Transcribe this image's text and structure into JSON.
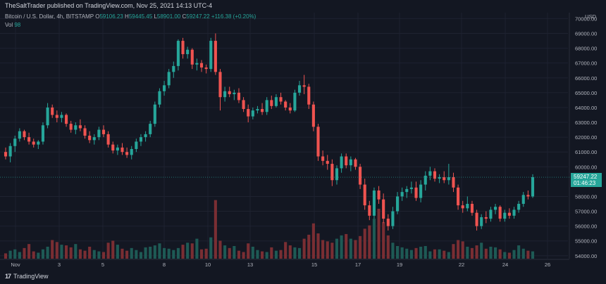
{
  "header": {
    "publisher": "TheSaltTrader published on TradingView.com, Nov 25, 2021 14:13 UTC-4"
  },
  "legend": {
    "symbol": "Bitcoin / U.S. Dollar, 4h, BITSTAMP",
    "open_label": "O",
    "open": "59106.23",
    "high_label": "H",
    "high": "59445.45",
    "low_label": "L",
    "low": "58901.00",
    "close_label": "C",
    "close": "59247.22",
    "change": "+116.38 (+0.20%)"
  },
  "volume": {
    "label": "Vol",
    "value": "98"
  },
  "price_box": {
    "price": "59247.22",
    "countdown": "01:46:23"
  },
  "footer": {
    "brand": "TradingView"
  },
  "colors": {
    "up": "#26a69a",
    "down": "#ef5350",
    "background": "#131722",
    "grid": "#1e2230"
  },
  "chart_data": {
    "type": "candlestick",
    "currency_label": "USD",
    "y_ticks": [
      "70000.00",
      "69000.00",
      "68000.00",
      "67000.00",
      "66000.00",
      "65000.00",
      "64000.00",
      "63000.00",
      "62000.00",
      "61000.00",
      "60000.00",
      "58000.00",
      "57000.00",
      "56000.00",
      "55000.00",
      "54000.00"
    ],
    "ylim": [
      53800,
      70400
    ],
    "x_ticks": [
      "Nov",
      "3",
      "5",
      "8",
      "10",
      "13",
      "15",
      "17",
      "19",
      "22",
      "24",
      "26"
    ],
    "grid": true,
    "candles": [
      [
        61000,
        61300,
        60500,
        60700
      ],
      [
        60700,
        61600,
        60300,
        61400
      ],
      [
        61400,
        62100,
        61000,
        61900
      ],
      [
        61900,
        62600,
        61700,
        62400
      ],
      [
        62400,
        62500,
        61800,
        62000
      ],
      [
        62000,
        62300,
        61500,
        61700
      ],
      [
        61700,
        61900,
        61300,
        61500
      ],
      [
        61500,
        61800,
        61200,
        61700
      ],
      [
        61700,
        63000,
        61500,
        62800
      ],
      [
        62800,
        64300,
        62600,
        64000
      ],
      [
        64000,
        64200,
        63300,
        63500
      ],
      [
        63500,
        63800,
        63000,
        63300
      ],
      [
        63300,
        63700,
        63000,
        63500
      ],
      [
        63500,
        63600,
        62700,
        62900
      ],
      [
        62900,
        63100,
        62300,
        62500
      ],
      [
        62500,
        63000,
        62200,
        62800
      ],
      [
        62800,
        63200,
        62400,
        62600
      ],
      [
        62600,
        62800,
        61900,
        62100
      ],
      [
        62100,
        62400,
        61600,
        61800
      ],
      [
        61800,
        62200,
        61500,
        62000
      ],
      [
        62000,
        62700,
        61800,
        62500
      ],
      [
        62500,
        62800,
        62000,
        62200
      ],
      [
        62200,
        62400,
        61300,
        61500
      ],
      [
        61500,
        61700,
        60900,
        61100
      ],
      [
        61100,
        61500,
        60800,
        61300
      ],
      [
        61300,
        61600,
        60800,
        61000
      ],
      [
        61000,
        61300,
        60600,
        60800
      ],
      [
        60800,
        61400,
        60500,
        61200
      ],
      [
        61200,
        61900,
        61000,
        61700
      ],
      [
        61700,
        62200,
        61400,
        62000
      ],
      [
        62000,
        62400,
        61700,
        62200
      ],
      [
        62200,
        63100,
        62000,
        62900
      ],
      [
        62900,
        64400,
        62700,
        64200
      ],
      [
        64200,
        65300,
        64000,
        65100
      ],
      [
        65100,
        65800,
        64800,
        65500
      ],
      [
        65500,
        66600,
        65300,
        66400
      ],
      [
        66400,
        67100,
        66000,
        66800
      ],
      [
        66800,
        68600,
        66500,
        68500
      ],
      [
        68500,
        68700,
        67300,
        67600
      ],
      [
        67600,
        68100,
        67300,
        67900
      ],
      [
        67900,
        68000,
        66600,
        66900
      ],
      [
        66900,
        67300,
        66500,
        67000
      ],
      [
        67000,
        67200,
        66400,
        66700
      ],
      [
        66700,
        66900,
        66300,
        66600
      ],
      [
        66600,
        68700,
        66400,
        68500
      ],
      [
        68500,
        69000,
        66200,
        66400
      ],
      [
        66400,
        66600,
        63800,
        64700
      ],
      [
        64700,
        65400,
        64400,
        65100
      ],
      [
        65100,
        65400,
        64700,
        64900
      ],
      [
        64900,
        65200,
        64500,
        65000
      ],
      [
        65000,
        65300,
        64300,
        64500
      ],
      [
        64500,
        64700,
        63700,
        63900
      ],
      [
        63900,
        64200,
        63000,
        63400
      ],
      [
        63400,
        64000,
        63200,
        63800
      ],
      [
        63800,
        64100,
        63600,
        63900
      ],
      [
        63900,
        64300,
        63500,
        63700
      ],
      [
        63700,
        64700,
        63500,
        64500
      ],
      [
        64500,
        64800,
        63900,
        64100
      ],
      [
        64100,
        64900,
        64000,
        64700
      ],
      [
        64700,
        65000,
        64200,
        64400
      ],
      [
        64400,
        64500,
        63800,
        64000
      ],
      [
        64000,
        64300,
        63600,
        63800
      ],
      [
        63800,
        65200,
        63700,
        65000
      ],
      [
        65000,
        65800,
        64800,
        65500
      ],
      [
        65500,
        66200,
        64900,
        65400
      ],
      [
        65400,
        65600,
        63900,
        64200
      ],
      [
        64200,
        64400,
        62400,
        62700
      ],
      [
        62700,
        62900,
        60400,
        60700
      ],
      [
        60700,
        61100,
        60100,
        60400
      ],
      [
        60400,
        60800,
        59800,
        60200
      ],
      [
        60200,
        60500,
        58700,
        59100
      ],
      [
        59100,
        60100,
        58800,
        59900
      ],
      [
        59900,
        60900,
        59600,
        60700
      ],
      [
        60700,
        60900,
        59900,
        60100
      ],
      [
        60100,
        60700,
        59700,
        60500
      ],
      [
        60500,
        60600,
        59800,
        60000
      ],
      [
        60000,
        60200,
        58500,
        58800
      ],
      [
        58800,
        59200,
        57100,
        57400
      ],
      [
        57400,
        57700,
        56400,
        56700
      ],
      [
        56700,
        58600,
        56500,
        58400
      ],
      [
        58400,
        58700,
        57500,
        57800
      ],
      [
        57800,
        58200,
        56200,
        56500
      ],
      [
        56500,
        56800,
        55700,
        56000
      ],
      [
        56000,
        57300,
        55800,
        57000
      ],
      [
        57000,
        58300,
        56800,
        58000
      ],
      [
        58000,
        58600,
        57700,
        58300
      ],
      [
        58300,
        58700,
        57900,
        58500
      ],
      [
        58500,
        59000,
        58200,
        58600
      ],
      [
        58600,
        59000,
        57700,
        57900
      ],
      [
        57900,
        59100,
        57600,
        58800
      ],
      [
        58800,
        59700,
        58400,
        59400
      ],
      [
        59400,
        60000,
        59100,
        59700
      ],
      [
        59700,
        59900,
        59000,
        59200
      ],
      [
        59200,
        59500,
        58900,
        59300
      ],
      [
        59300,
        59700,
        58900,
        59100
      ],
      [
        59100,
        60200,
        58800,
        59300
      ],
      [
        59300,
        59600,
        58300,
        58600
      ],
      [
        58600,
        58800,
        57100,
        57400
      ],
      [
        57400,
        57700,
        56900,
        57200
      ],
      [
        57200,
        58000,
        57000,
        57500
      ],
      [
        57500,
        57700,
        56700,
        56900
      ],
      [
        56900,
        57100,
        55700,
        56000
      ],
      [
        56000,
        56800,
        55800,
        56600
      ],
      [
        56600,
        57000,
        56200,
        56500
      ],
      [
        56500,
        57300,
        56300,
        57100
      ],
      [
        57100,
        57500,
        56800,
        57300
      ],
      [
        57300,
        57400,
        56300,
        56500
      ],
      [
        56500,
        57100,
        56300,
        56900
      ],
      [
        56900,
        57200,
        56500,
        56700
      ],
      [
        56700,
        57300,
        56500,
        57100
      ],
      [
        57100,
        57700,
        56900,
        57500
      ],
      [
        57500,
        58300,
        57300,
        58100
      ],
      [
        58100,
        58400,
        57800,
        58000
      ],
      [
        58000,
        59500,
        57900,
        59300
      ]
    ],
    "volumes": [
      8,
      12,
      14,
      10,
      16,
      22,
      11,
      9,
      14,
      18,
      28,
      25,
      21,
      20,
      17,
      22,
      14,
      12,
      18,
      13,
      11,
      10,
      24,
      27,
      21,
      15,
      12,
      16,
      13,
      10,
      17,
      18,
      20,
      23,
      16,
      15,
      13,
      16,
      21,
      24,
      23,
      30,
      14,
      15,
      32,
      88,
      27,
      20,
      16,
      19,
      12,
      10,
      23,
      18,
      13,
      11,
      10,
      17,
      12,
      13,
      25,
      20,
      17,
      16,
      30,
      36,
      53,
      38,
      28,
      26,
      24,
      30,
      35,
      37,
      30,
      28,
      34,
      45,
      50,
      60,
      75,
      55,
      35,
      24,
      19,
      17,
      15,
      13,
      16,
      18,
      19,
      11,
      14,
      14,
      12,
      10,
      22,
      28,
      26,
      18,
      16,
      20,
      24,
      15,
      18,
      17,
      14,
      10,
      9,
      13,
      20,
      15,
      12,
      11
    ]
  }
}
